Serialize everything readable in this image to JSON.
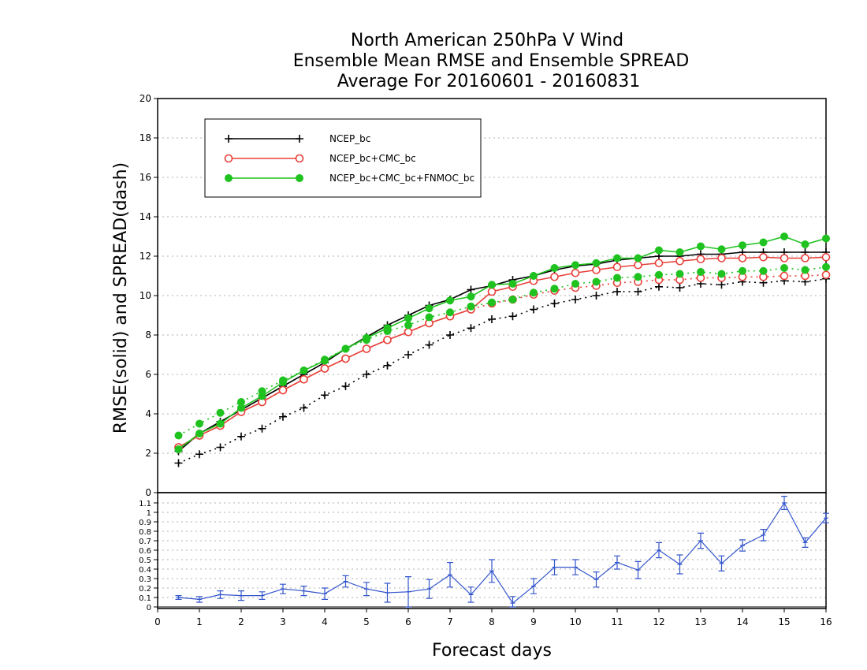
{
  "title_lines": [
    "North American 250hPa V Wind",
    "Ensemble Mean RMSE and Ensemble SPREAD",
    "Average For 20160601 - 20160831"
  ],
  "chart_data": [
    {
      "type": "line",
      "ylabel": "RMSE(solid) and SPREAD(dash)",
      "xlabel": "Forecast days",
      "xlim": [
        0,
        16
      ],
      "ylim": [
        0,
        20
      ],
      "x_ticks": [
        0,
        1,
        2,
        3,
        4,
        5,
        6,
        7,
        8,
        9,
        10,
        11,
        12,
        13,
        14,
        15,
        16
      ],
      "y_ticks": [
        0,
        2,
        4,
        6,
        8,
        10,
        12,
        14,
        16,
        18,
        20
      ],
      "grid": true,
      "legend_position": "top-left",
      "x": [
        0.5,
        1,
        1.5,
        2,
        2.5,
        3,
        3.5,
        4,
        4.5,
        5,
        5.5,
        6,
        6.5,
        7,
        7.5,
        8,
        8.5,
        9,
        9.5,
        10,
        10.5,
        11,
        11.5,
        12,
        12.5,
        13,
        13.5,
        14,
        14.5,
        15,
        15.5,
        16
      ],
      "series": [
        {
          "name": "NCEP_bc",
          "color": "#000000",
          "marker": "plus",
          "rmse": [
            2.1,
            3.0,
            3.6,
            4.2,
            4.8,
            5.4,
            6.0,
            6.6,
            7.3,
            7.9,
            8.5,
            9.0,
            9.5,
            9.8,
            10.3,
            10.5,
            10.8,
            11.0,
            11.3,
            11.5,
            11.6,
            11.8,
            11.9,
            12.0,
            12.0,
            12.1,
            12.1,
            12.2,
            12.2,
            12.2,
            12.2,
            12.2
          ],
          "spread": [
            1.5,
            1.95,
            2.3,
            2.85,
            3.25,
            3.85,
            4.3,
            4.95,
            5.4,
            6.0,
            6.45,
            7.0,
            7.5,
            8.0,
            8.35,
            8.8,
            8.95,
            9.3,
            9.6,
            9.8,
            10.0,
            10.2,
            10.2,
            10.45,
            10.4,
            10.6,
            10.55,
            10.7,
            10.65,
            10.75,
            10.7,
            10.85
          ]
        },
        {
          "name": "NCEP_bc+CMC_bc",
          "color": "#e8403a",
          "marker": "open-circle",
          "rmse": [
            2.3,
            2.9,
            3.4,
            4.1,
            4.6,
            5.2,
            5.75,
            6.3,
            6.8,
            7.3,
            7.75,
            8.15,
            8.6,
            8.95,
            9.3,
            10.2,
            10.45,
            10.75,
            10.95,
            11.15,
            11.3,
            11.45,
            11.55,
            11.65,
            11.75,
            11.85,
            11.9,
            11.9,
            11.95,
            11.9,
            11.9,
            11.95
          ],
          "spread": [
            2.3,
            2.9,
            3.4,
            4.1,
            4.6,
            5.2,
            5.75,
            6.3,
            6.8,
            7.3,
            7.75,
            8.15,
            8.6,
            8.95,
            9.3,
            9.6,
            9.8,
            10.05,
            10.25,
            10.4,
            10.5,
            10.65,
            10.7,
            10.8,
            10.8,
            10.9,
            10.9,
            10.95,
            10.95,
            11.0,
            11.0,
            11.05
          ]
        },
        {
          "name": "NCEP_bc+CMC_bc+FNMOC_bc",
          "color": "#1fc21f",
          "marker": "filled-circle",
          "rmse": [
            2.2,
            3.0,
            3.5,
            4.3,
            4.9,
            5.6,
            6.2,
            6.7,
            7.3,
            7.85,
            8.35,
            8.85,
            9.35,
            9.75,
            9.95,
            10.55,
            10.6,
            11.0,
            11.4,
            11.55,
            11.65,
            11.9,
            11.9,
            12.3,
            12.2,
            12.5,
            12.35,
            12.55,
            12.7,
            13.0,
            12.6,
            12.9
          ],
          "spread": [
            2.9,
            3.5,
            4.05,
            4.6,
            5.15,
            5.7,
            6.2,
            6.75,
            7.3,
            7.75,
            8.2,
            8.5,
            8.9,
            9.15,
            9.45,
            9.65,
            9.8,
            10.15,
            10.35,
            10.6,
            10.7,
            10.9,
            10.95,
            11.05,
            11.1,
            11.2,
            11.1,
            11.25,
            11.25,
            11.4,
            11.3,
            11.45
          ]
        }
      ]
    },
    {
      "type": "line",
      "xlabel": "Forecast days",
      "xlim": [
        0,
        16
      ],
      "ylim": [
        0,
        1.2
      ],
      "y_ticks": [
        0,
        0.1,
        0.2,
        0.3,
        0.4,
        0.5,
        0.6,
        0.7,
        0.8,
        0.9,
        1,
        1.1
      ],
      "grid": true,
      "series": [
        {
          "color": "#3355cc",
          "marker": "error-bar",
          "x": [
            0.5,
            1,
            1.5,
            2,
            2.5,
            3,
            3.5,
            4,
            4.5,
            5,
            5.5,
            6,
            6.5,
            7,
            7.5,
            8,
            8.5,
            9,
            9.5,
            10,
            10.5,
            11,
            11.5,
            12,
            12.5,
            13,
            13.5,
            14,
            14.5,
            15,
            15.5,
            16
          ],
          "values": [
            0.1,
            0.08,
            0.13,
            0.12,
            0.12,
            0.19,
            0.17,
            0.14,
            0.27,
            0.19,
            0.15,
            0.16,
            0.19,
            0.34,
            0.13,
            0.38,
            0.04,
            0.22,
            0.42,
            0.42,
            0.29,
            0.47,
            0.39,
            0.6,
            0.45,
            0.7,
            0.46,
            0.65,
            0.76,
            1.1,
            0.68,
            0.94
          ],
          "errors": [
            0.02,
            0.03,
            0.04,
            0.05,
            0.04,
            0.05,
            0.05,
            0.06,
            0.06,
            0.07,
            0.1,
            0.16,
            0.1,
            0.13,
            0.08,
            0.12,
            0.07,
            0.08,
            0.08,
            0.08,
            0.08,
            0.07,
            0.09,
            0.08,
            0.1,
            0.08,
            0.08,
            0.06,
            0.06,
            0.07,
            0.05,
            0.05
          ]
        }
      ]
    }
  ]
}
